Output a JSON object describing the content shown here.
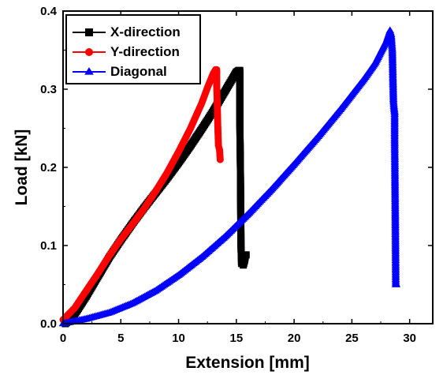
{
  "chart_data": {
    "type": "line",
    "title": "",
    "xlabel": "Extension [mm]",
    "ylabel": "Load [kN]",
    "xlim": [
      0,
      32
    ],
    "ylim": [
      0,
      0.4
    ],
    "xticks": [
      0,
      5,
      10,
      15,
      20,
      25,
      30
    ],
    "yticks": [
      0.0,
      0.1,
      0.2,
      0.3,
      0.4
    ],
    "xtick_labels": [
      "0",
      "5",
      "10",
      "15",
      "20",
      "25",
      "30"
    ],
    "ytick_labels": [
      "0.0",
      "0.1",
      "0.2",
      "0.3",
      "0.4"
    ],
    "grid": false,
    "legend_position": "top-left",
    "series": [
      {
        "name": "X-direction",
        "color": "#000000",
        "marker": "square",
        "points": [
          [
            0.2,
            0.0
          ],
          [
            0.5,
            0.004
          ],
          [
            1.0,
            0.012
          ],
          [
            2.0,
            0.035
          ],
          [
            3.0,
            0.06
          ],
          [
            4.0,
            0.085
          ],
          [
            5.0,
            0.107
          ],
          [
            6.0,
            0.128
          ],
          [
            7.0,
            0.148
          ],
          [
            8.0,
            0.167
          ],
          [
            9.0,
            0.186
          ],
          [
            10.0,
            0.206
          ],
          [
            11.0,
            0.227
          ],
          [
            12.0,
            0.249
          ],
          [
            13.0,
            0.272
          ],
          [
            14.0,
            0.297
          ],
          [
            15.0,
            0.322
          ],
          [
            15.2,
            0.324
          ],
          [
            15.3,
            0.324
          ],
          [
            15.3,
            0.26
          ],
          [
            15.35,
            0.2
          ],
          [
            15.4,
            0.1
          ],
          [
            15.45,
            0.077
          ],
          [
            15.6,
            0.075
          ],
          [
            15.7,
            0.08
          ],
          [
            15.8,
            0.088
          ],
          [
            15.85,
            0.088
          ]
        ]
      },
      {
        "name": "Y-direction",
        "color": "#ff0000",
        "marker": "circle",
        "points": [
          [
            0.0,
            0.005
          ],
          [
            1.0,
            0.02
          ],
          [
            2.0,
            0.042
          ],
          [
            3.0,
            0.064
          ],
          [
            4.0,
            0.087
          ],
          [
            5.0,
            0.108
          ],
          [
            6.0,
            0.127
          ],
          [
            7.0,
            0.147
          ],
          [
            8.0,
            0.169
          ],
          [
            9.0,
            0.193
          ],
          [
            10.0,
            0.22
          ],
          [
            11.0,
            0.249
          ],
          [
            12.0,
            0.282
          ],
          [
            12.5,
            0.302
          ],
          [
            13.0,
            0.32
          ],
          [
            13.2,
            0.325
          ],
          [
            13.3,
            0.325
          ],
          [
            13.3,
            0.303
          ],
          [
            13.35,
            0.28
          ],
          [
            13.4,
            0.25
          ],
          [
            13.45,
            0.228
          ],
          [
            13.5,
            0.225
          ],
          [
            13.55,
            0.222
          ],
          [
            13.6,
            0.21
          ]
        ]
      },
      {
        "name": "Diagonal",
        "color": "#0000ff",
        "marker": "triangle",
        "points": [
          [
            0.0,
            0.0
          ],
          [
            2.0,
            0.006
          ],
          [
            4.0,
            0.014
          ],
          [
            6.0,
            0.026
          ],
          [
            8.0,
            0.042
          ],
          [
            10.0,
            0.062
          ],
          [
            12.0,
            0.085
          ],
          [
            14.0,
            0.111
          ],
          [
            16.0,
            0.14
          ],
          [
            18.0,
            0.171
          ],
          [
            20.0,
            0.204
          ],
          [
            22.0,
            0.238
          ],
          [
            24.0,
            0.274
          ],
          [
            26.0,
            0.312
          ],
          [
            27.0,
            0.333
          ],
          [
            28.0,
            0.362
          ],
          [
            28.3,
            0.375
          ],
          [
            28.4,
            0.37
          ],
          [
            28.5,
            0.35
          ],
          [
            28.55,
            0.315
          ],
          [
            28.6,
            0.285
          ],
          [
            28.65,
            0.276
          ],
          [
            28.7,
            0.27
          ],
          [
            28.7,
            0.235
          ],
          [
            28.75,
            0.15
          ],
          [
            28.8,
            0.05
          ],
          [
            28.85,
            0.05
          ]
        ]
      }
    ]
  }
}
